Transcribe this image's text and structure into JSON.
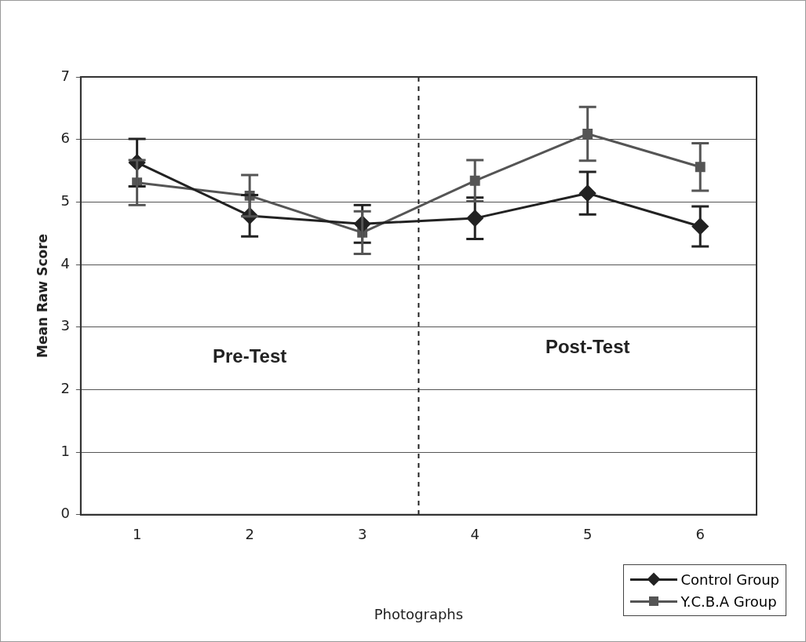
{
  "chart_data": {
    "type": "line",
    "xlabel": "Photographs",
    "ylabel": "Mean Raw Score",
    "x": [
      1,
      2,
      3,
      4,
      5,
      6
    ],
    "xlim": [
      0.5,
      6.5
    ],
    "xticks": [
      1,
      2,
      3,
      4,
      5,
      6
    ],
    "ylim": [
      0,
      7
    ],
    "yticks": [
      0,
      1,
      2,
      3,
      4,
      5,
      6,
      7
    ],
    "series": [
      {
        "name": "Control Group",
        "color": "#222222",
        "marker": "diamond",
        "values": [
          5.63,
          4.78,
          4.65,
          4.74,
          5.14,
          4.61
        ],
        "errors": [
          0.38,
          0.33,
          0.3,
          0.33,
          0.34,
          0.32
        ]
      },
      {
        "name": "Y.C.B.A Group",
        "color": "#555555",
        "marker": "square",
        "values": [
          5.31,
          5.1,
          4.51,
          5.34,
          6.09,
          5.56
        ],
        "errors": [
          0.36,
          0.33,
          0.34,
          0.33,
          0.43,
          0.38
        ]
      }
    ],
    "ref_lines": [
      {
        "axis": "x",
        "value": 3.5,
        "color": "#222222",
        "line_style": "dashed"
      }
    ],
    "annotations": [
      "Pre-Test",
      "Post-Test"
    ],
    "grid": "y",
    "legend": "bottom right",
    "line_style": "solid"
  }
}
